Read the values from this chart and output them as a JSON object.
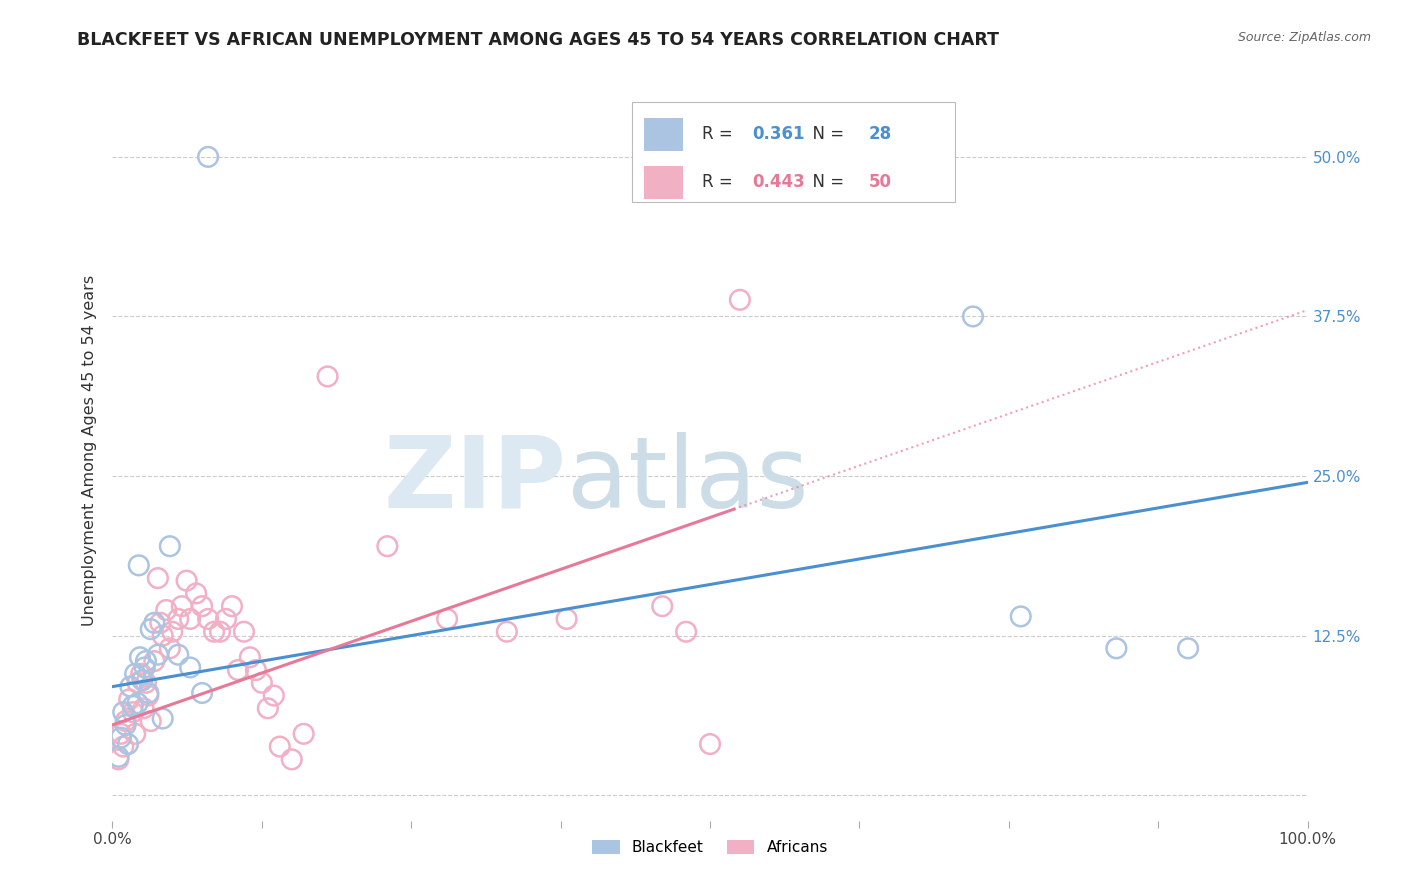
{
  "title": "BLACKFEET VS AFRICAN UNEMPLOYMENT AMONG AGES 45 TO 54 YEARS CORRELATION CHART",
  "source": "Source: ZipAtlas.com",
  "ylabel": "Unemployment Among Ages 45 to 54 years",
  "xlim": [
    0,
    1.0
  ],
  "ylim": [
    -0.02,
    0.56
  ],
  "xticks": [
    0.0,
    0.125,
    0.25,
    0.375,
    0.5,
    0.625,
    0.75,
    0.875,
    1.0
  ],
  "xticklabels": [
    "0.0%",
    "",
    "",
    "",
    "",
    "",
    "",
    "",
    "100.0%"
  ],
  "yticks": [
    0.0,
    0.125,
    0.25,
    0.375,
    0.5
  ],
  "yticklabels": [
    "",
    "12.5%",
    "25.0%",
    "37.5%",
    "50.0%"
  ],
  "blackfeet_R": "0.361",
  "blackfeet_N": "28",
  "african_R": "0.443",
  "african_N": "50",
  "blackfeet_color": "#aac4e2",
  "african_color": "#f2b0c4",
  "blackfeet_line_color": "#4a90d0",
  "african_line_color": "#e87898",
  "bf_line_x0": 0.0,
  "bf_line_y0": 0.085,
  "bf_line_x1": 1.0,
  "bf_line_y1": 0.245,
  "af_line_x0": 0.0,
  "af_line_y0": 0.055,
  "af_line_x1": 1.0,
  "af_line_y1": 0.38,
  "blackfeet_x": [
    0.005,
    0.007,
    0.009,
    0.011,
    0.013,
    0.015,
    0.017,
    0.019,
    0.021,
    0.023,
    0.025,
    0.027,
    0.03,
    0.032,
    0.035,
    0.038,
    0.042,
    0.048,
    0.055,
    0.065,
    0.075,
    0.022,
    0.028,
    0.08,
    0.72,
    0.76,
    0.84,
    0.9
  ],
  "blackfeet_y": [
    0.03,
    0.045,
    0.065,
    0.055,
    0.04,
    0.085,
    0.07,
    0.095,
    0.072,
    0.108,
    0.09,
    0.1,
    0.08,
    0.13,
    0.135,
    0.11,
    0.06,
    0.195,
    0.11,
    0.1,
    0.08,
    0.18,
    0.105,
    0.5,
    0.375,
    0.14,
    0.115,
    0.115
  ],
  "african_x": [
    0.005,
    0.007,
    0.009,
    0.011,
    0.014,
    0.017,
    0.019,
    0.021,
    0.024,
    0.026,
    0.028,
    0.03,
    0.032,
    0.035,
    0.038,
    0.04,
    0.042,
    0.045,
    0.048,
    0.05,
    0.055,
    0.058,
    0.062,
    0.065,
    0.07,
    0.075,
    0.08,
    0.085,
    0.09,
    0.095,
    0.1,
    0.105,
    0.11,
    0.115,
    0.12,
    0.125,
    0.13,
    0.135,
    0.14,
    0.15,
    0.16,
    0.18,
    0.23,
    0.28,
    0.33,
    0.38,
    0.48,
    0.5,
    0.46,
    0.525
  ],
  "african_y": [
    0.028,
    0.048,
    0.038,
    0.058,
    0.075,
    0.065,
    0.048,
    0.088,
    0.095,
    0.068,
    0.088,
    0.078,
    0.058,
    0.105,
    0.17,
    0.135,
    0.125,
    0.145,
    0.115,
    0.128,
    0.138,
    0.148,
    0.168,
    0.138,
    0.158,
    0.148,
    0.138,
    0.128,
    0.128,
    0.138,
    0.148,
    0.098,
    0.128,
    0.108,
    0.098,
    0.088,
    0.068,
    0.078,
    0.038,
    0.028,
    0.048,
    0.328,
    0.195,
    0.138,
    0.128,
    0.138,
    0.128,
    0.04,
    0.148,
    0.388
  ]
}
